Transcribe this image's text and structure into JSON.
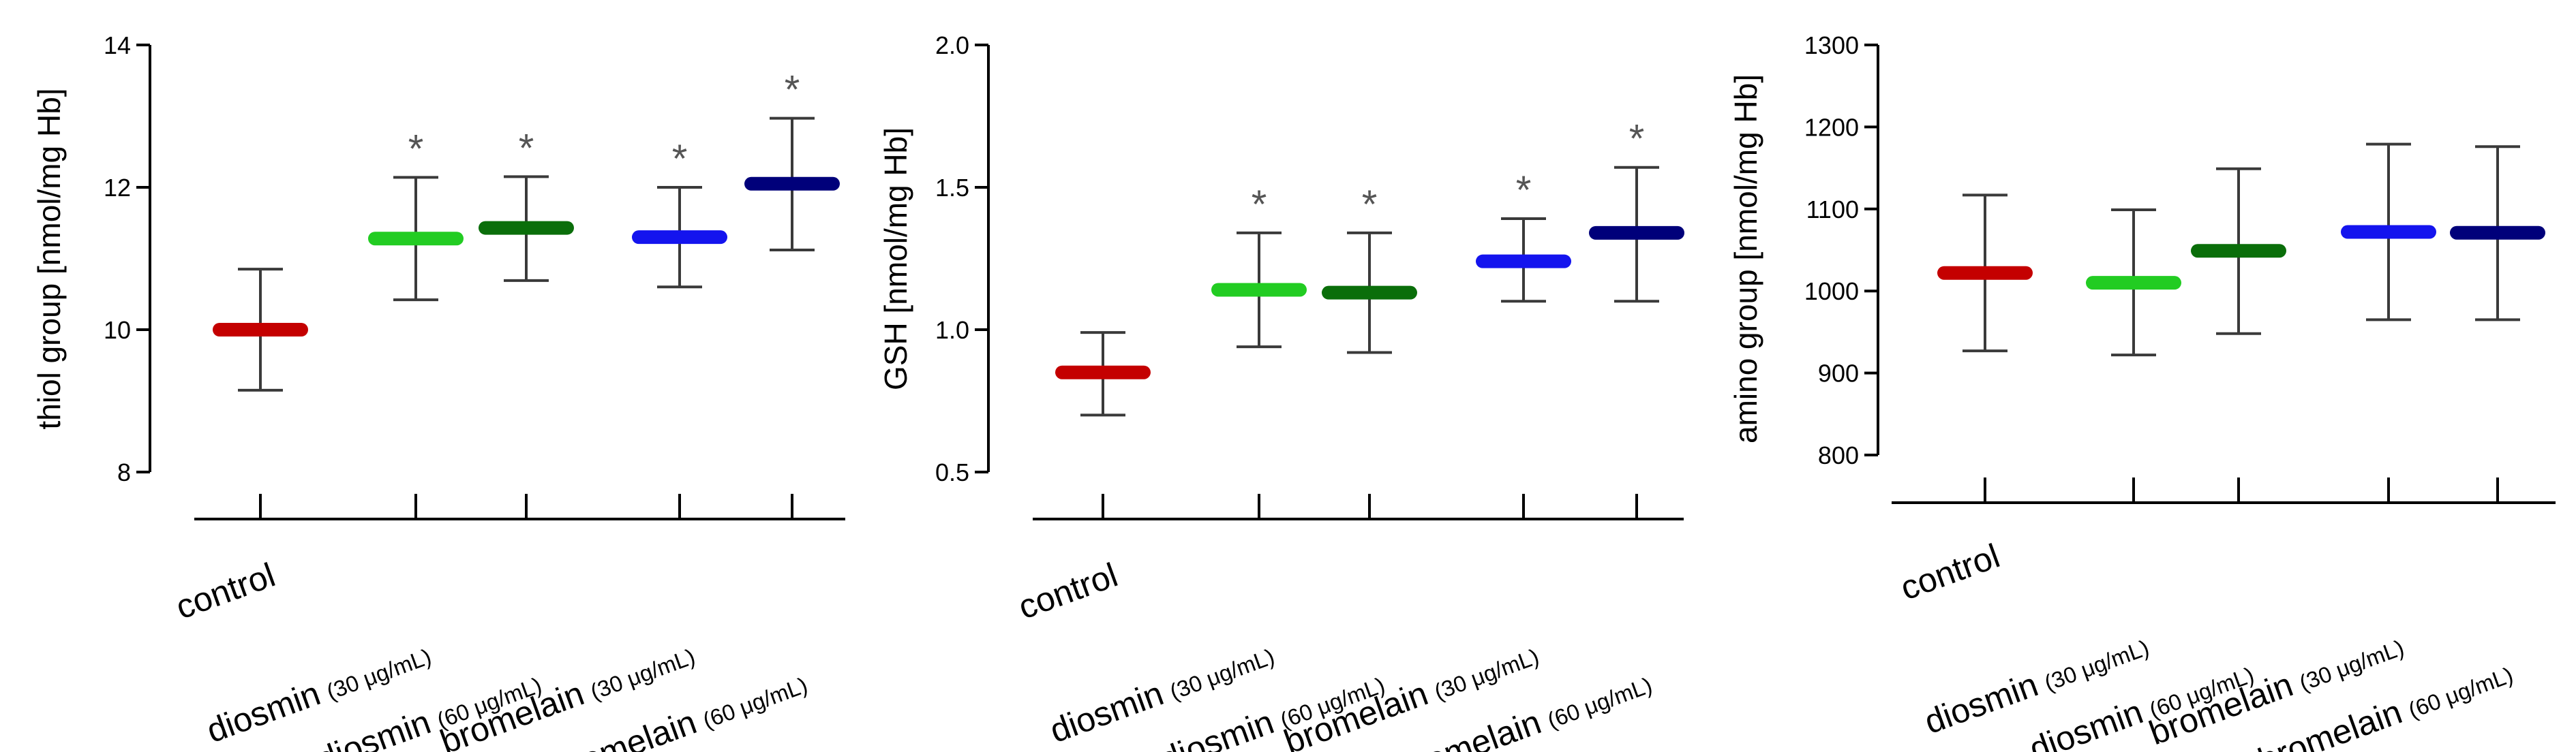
{
  "chart_data": [
    {
      "type": "mean-error-bar",
      "ylabel": "thiol group [nmol/mg Hb]",
      "ylim": [
        8,
        14
      ],
      "yticks": [
        8,
        10,
        12,
        14
      ],
      "groups": [
        {
          "name": "control",
          "conc": "",
          "mean": 10.0,
          "low": 9.15,
          "high": 10.85,
          "sig": "",
          "color": "#c40000"
        },
        {
          "name": "diosmin",
          "conc": "(30 μg/mL)",
          "mean": 11.28,
          "low": 10.42,
          "high": 12.14,
          "sig": "*",
          "color": "#22cc22"
        },
        {
          "name": "diosmin",
          "conc": "(60 μg/mL)",
          "mean": 11.43,
          "low": 10.69,
          "high": 12.15,
          "sig": "*",
          "color": "#0a6e0a"
        },
        {
          "name": "bromelain",
          "conc": "(30 μg/mL)",
          "mean": 11.3,
          "low": 10.6,
          "high": 12.0,
          "sig": "*",
          "color": "#1414ee"
        },
        {
          "name": "bromelain",
          "conc": "(60 μg/mL)",
          "mean": 12.05,
          "low": 11.12,
          "high": 12.97,
          "sig": "*",
          "color": "#00007a"
        }
      ]
    },
    {
      "type": "mean-error-bar",
      "ylabel": "GSH [nmol/mg Hb]",
      "ylim": [
        0.5,
        2.0
      ],
      "yticks": [
        "0.5",
        "1.0",
        "1.5",
        "2.0"
      ],
      "groups": [
        {
          "name": "control",
          "conc": "",
          "mean": 0.85,
          "low": 0.7,
          "high": 0.99,
          "sig": "",
          "color": "#c40000"
        },
        {
          "name": "diosmin",
          "conc": "(30 μg/mL)",
          "mean": 1.14,
          "low": 0.94,
          "high": 1.34,
          "sig": "*",
          "color": "#22cc22"
        },
        {
          "name": "diosmin",
          "conc": "(60 μg/mL)",
          "mean": 1.13,
          "low": 0.92,
          "high": 1.34,
          "sig": "*",
          "color": "#0a6e0a"
        },
        {
          "name": "bromelain",
          "conc": "(30 μg/mL)",
          "mean": 1.24,
          "low": 1.1,
          "high": 1.39,
          "sig": "*",
          "color": "#1414ee"
        },
        {
          "name": "bromelain",
          "conc": "(60 μg/mL)",
          "mean": 1.34,
          "low": 1.1,
          "high": 1.57,
          "sig": "*",
          "color": "#00007a"
        }
      ]
    },
    {
      "type": "mean-error-bar",
      "ylabel": "amino group [nmol/mg Hb]",
      "ylim": [
        800,
        1300
      ],
      "yticks": [
        800,
        900,
        1000,
        1100,
        1200,
        1300
      ],
      "groups": [
        {
          "name": "control",
          "conc": "",
          "mean": 1022,
          "low": 927,
          "high": 1117,
          "sig": "",
          "color": "#c40000"
        },
        {
          "name": "diosmin",
          "conc": "(30 μg/mL)",
          "mean": 1010,
          "low": 922,
          "high": 1099,
          "sig": "",
          "color": "#22cc22"
        },
        {
          "name": "diosmin",
          "conc": "(60 μg/mL)",
          "mean": 1049,
          "low": 948,
          "high": 1149,
          "sig": "",
          "color": "#0a6e0a"
        },
        {
          "name": "bromelain",
          "conc": "(30 μg/mL)",
          "mean": 1072,
          "low": 965,
          "high": 1179,
          "sig": "",
          "color": "#1414ee"
        },
        {
          "name": "bromelain",
          "conc": "(60 μg/mL)",
          "mean": 1071,
          "low": 965,
          "high": 1176,
          "sig": "",
          "color": "#00007a"
        }
      ]
    }
  ]
}
